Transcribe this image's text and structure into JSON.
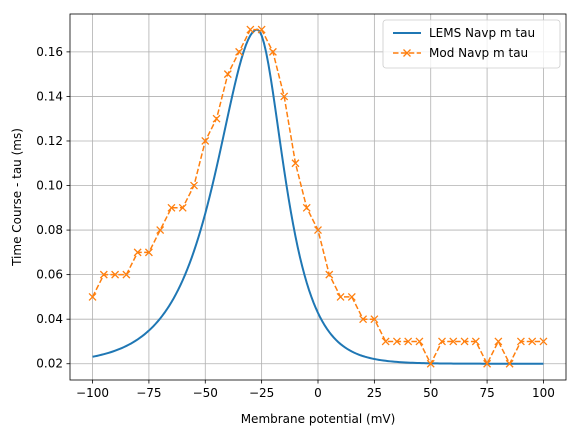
{
  "chart_data": {
    "type": "line",
    "title": "",
    "xlabel": "Membrane potential (mV)",
    "ylabel": "Time Course - tau (ms)",
    "xlim": [
      -110,
      110
    ],
    "ylim": [
      0.0127,
      0.177
    ],
    "xticks": [
      -100,
      -75,
      -50,
      -25,
      0,
      25,
      50,
      75,
      100
    ],
    "yticks": [
      0.02,
      0.04,
      0.06,
      0.08,
      0.1,
      0.12,
      0.14,
      0.16
    ],
    "xtick_labels": [
      "−100",
      "−75",
      "−50",
      "−25",
      "0",
      "25",
      "50",
      "75",
      "100"
    ],
    "ytick_labels": [
      "0.02",
      "0.04",
      "0.06",
      "0.08",
      "0.10",
      "0.12",
      "0.14",
      "0.16"
    ],
    "grid": true,
    "legend_position": "top-right",
    "series": [
      {
        "name": "LEMS Navp m tau",
        "color": "#1f77b4",
        "style": "solid",
        "marker": "none",
        "curve": {
          "base": 0.02,
          "amplitude": 0.15,
          "peak_v": -27,
          "left_width": 16,
          "right_width": 10.5,
          "x_start": -100,
          "x_end": 100,
          "step": 1
        }
      },
      {
        "name": "Mod Navp m tau",
        "color": "#ff7f0e",
        "style": "dashed",
        "marker": "x",
        "x": [
          -100,
          -95,
          -90,
          -85,
          -80,
          -75,
          -70,
          -65,
          -60,
          -55,
          -50,
          -45,
          -40,
          -35,
          -30,
          -25,
          -20,
          -15,
          -10,
          -5,
          0,
          5,
          10,
          15,
          20,
          25,
          30,
          35,
          40,
          45,
          50,
          55,
          60,
          65,
          70,
          75,
          80,
          85,
          90,
          95,
          100
        ],
        "y": [
          0.05,
          0.06,
          0.06,
          0.06,
          0.07,
          0.07,
          0.08,
          0.09,
          0.09,
          0.1,
          0.12,
          0.13,
          0.15,
          0.16,
          0.17,
          0.17,
          0.16,
          0.14,
          0.11,
          0.09,
          0.08,
          0.06,
          0.05,
          0.05,
          0.04,
          0.04,
          0.03,
          0.03,
          0.03,
          0.03,
          0.02,
          0.03,
          0.03,
          0.03,
          0.03,
          0.02,
          0.03,
          0.02,
          0.03,
          0.03,
          0.03
        ]
      }
    ]
  }
}
